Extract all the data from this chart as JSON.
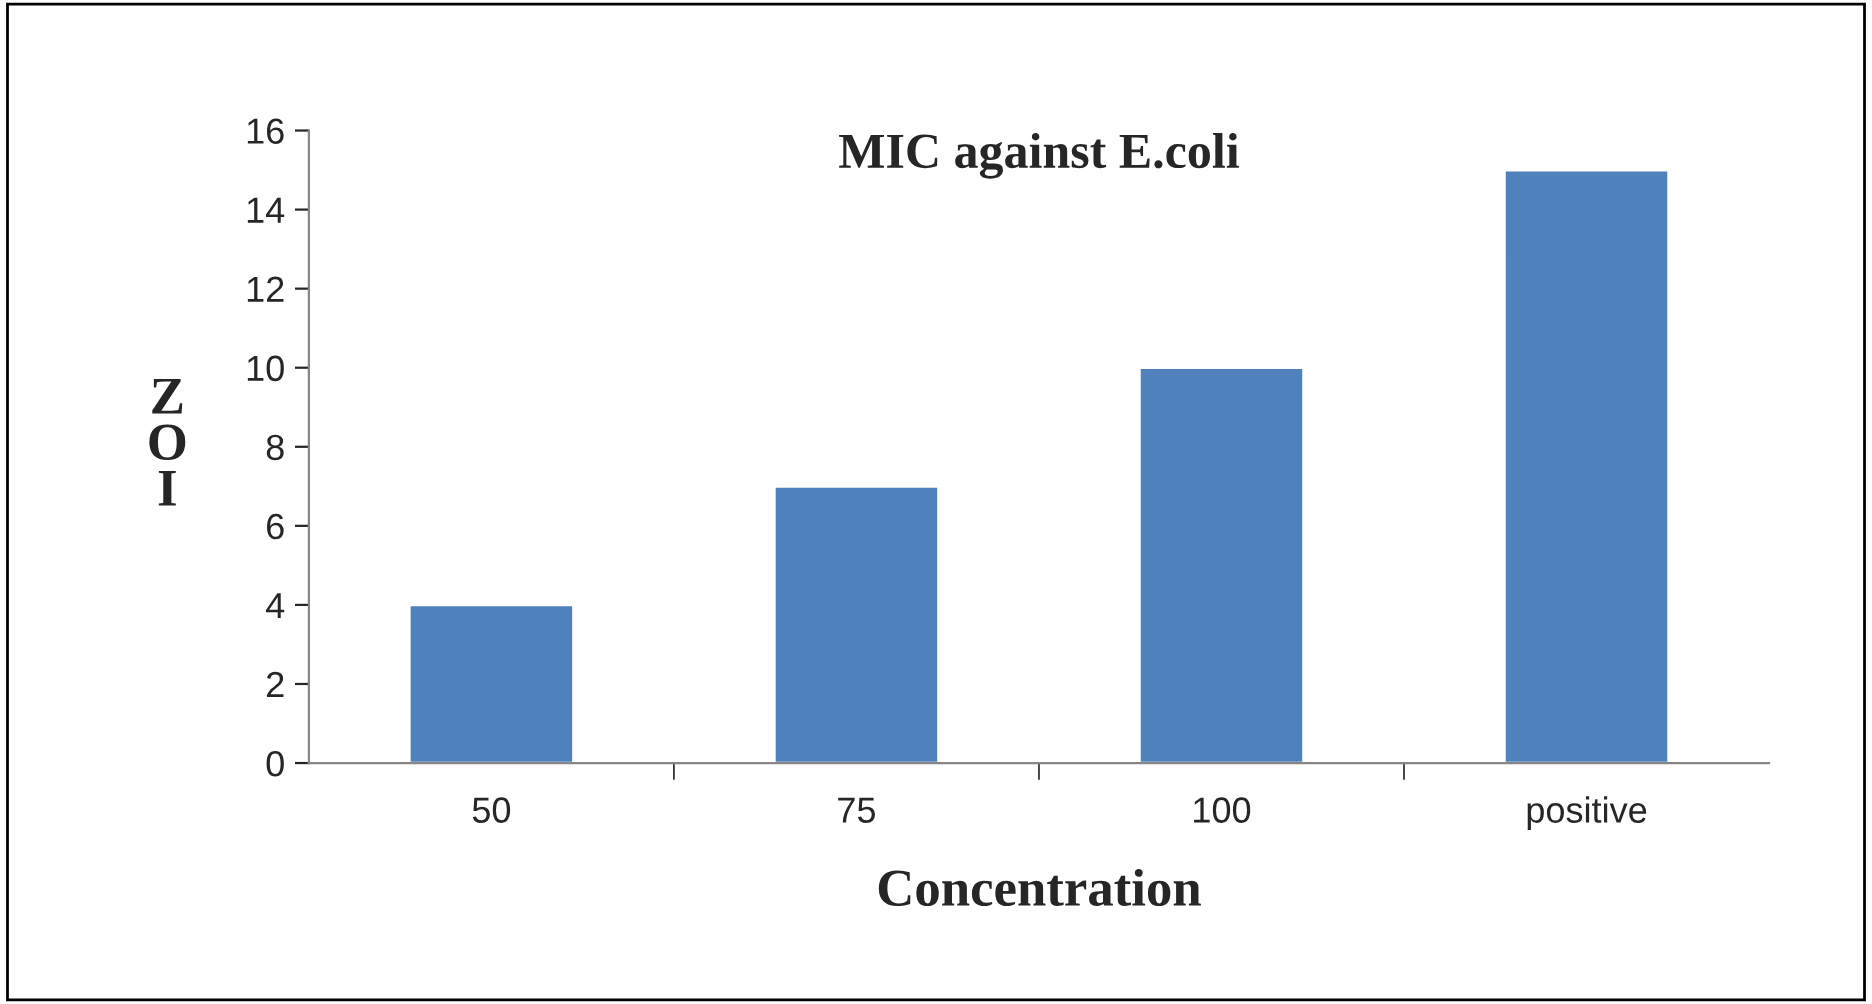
{
  "chart_data": {
    "type": "bar",
    "title": "MIC against E.coli",
    "xlabel": "Concentration",
    "ylabel": "ZOI",
    "categories": [
      "50",
      "75",
      "100",
      "positive"
    ],
    "values": [
      4,
      7,
      10,
      15
    ],
    "color": "#4f81bd",
    "ylim": [
      0,
      16
    ],
    "yticks": [
      0,
      2,
      4,
      6,
      8,
      10,
      12,
      14,
      16
    ],
    "grid": false,
    "legend": false
  }
}
